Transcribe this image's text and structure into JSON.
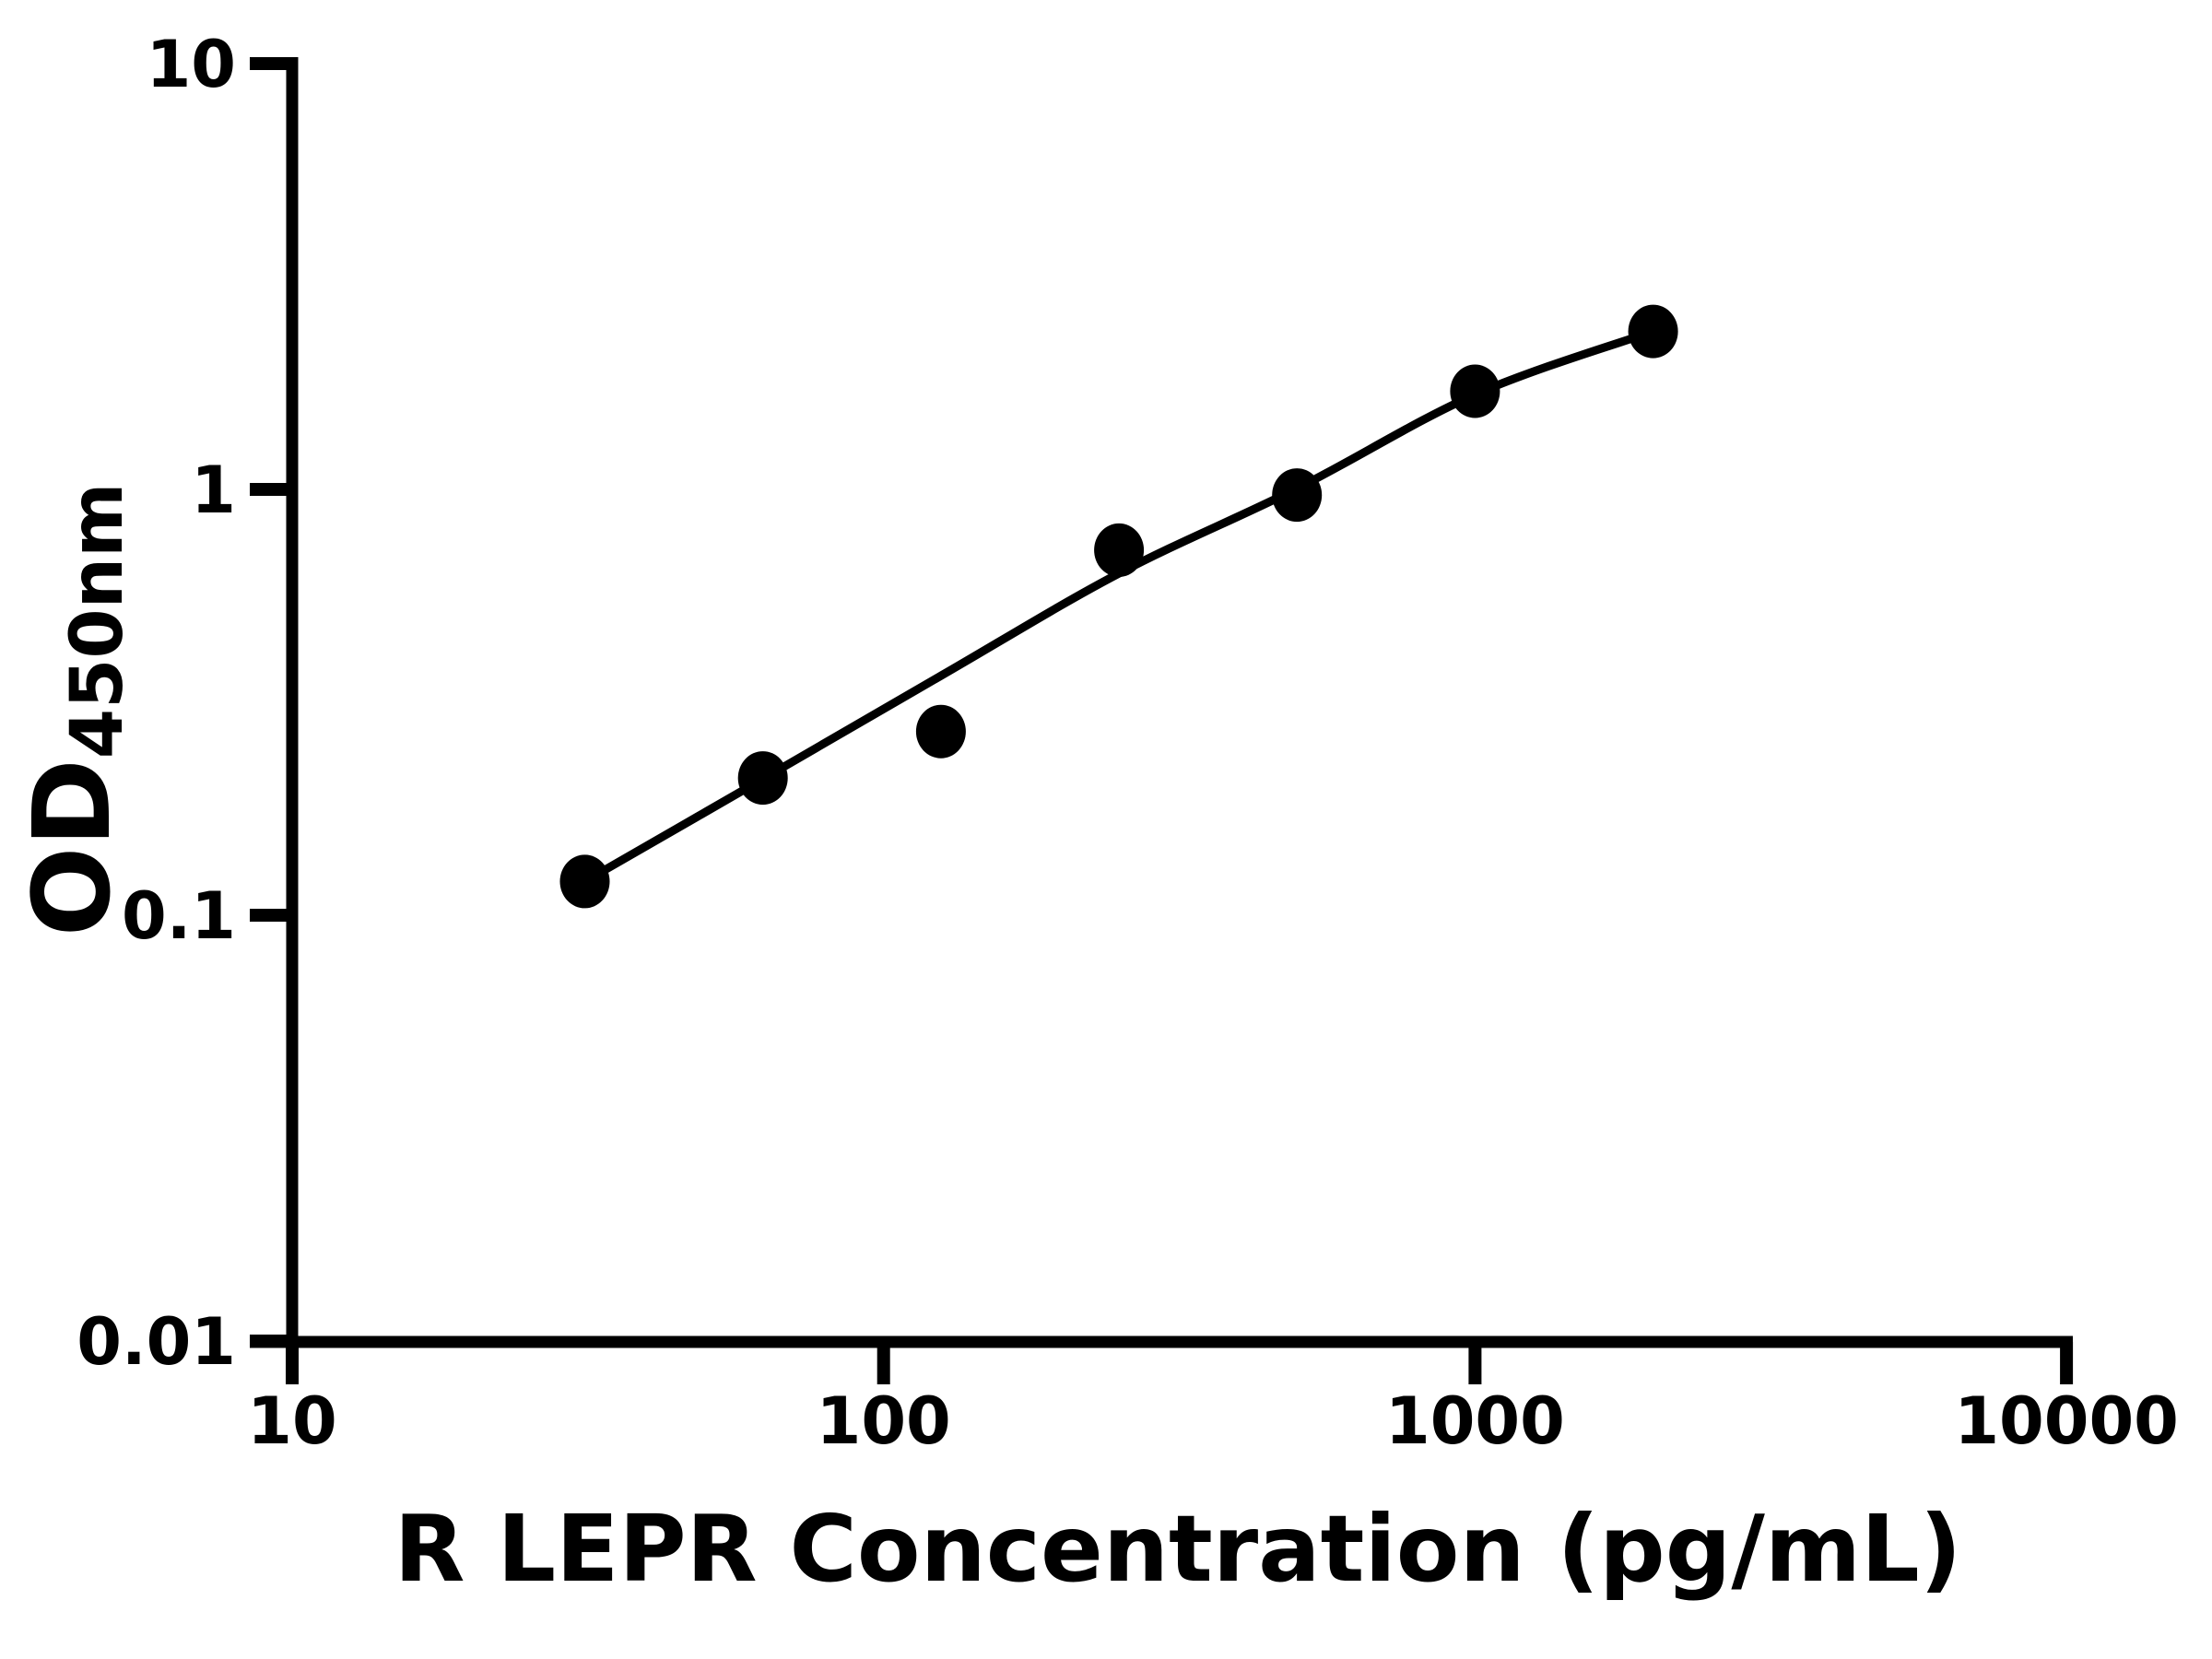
{
  "chart_data": {
    "type": "scatter",
    "x": [
      31.25,
      62.5,
      125,
      250,
      500,
      1000,
      2000
    ],
    "y_od": [
      0.12,
      0.21,
      0.27,
      0.72,
      0.97,
      1.7,
      2.35
    ],
    "fit_od": [
      0.12,
      0.209,
      0.365,
      0.635,
      1.005,
      1.67,
      2.35
    ],
    "xlabel": "R LEPR Concentration (pg/mL)",
    "ylabel_main": "OD",
    "ylabel_sub": "450nm",
    "x_ticks": [
      10,
      100,
      1000,
      10000
    ],
    "x_tick_labels": [
      "10",
      "100",
      "1000",
      "10000"
    ],
    "y_ticks": [
      0.01,
      0.1,
      1,
      10
    ],
    "y_tick_labels": [
      "0.01",
      "0.1",
      "1",
      "10"
    ],
    "xlim": [
      10,
      10000
    ],
    "ylim": [
      0.01,
      10
    ],
    "x_scale": "log",
    "y_scale": "log",
    "grid": false,
    "legend": null,
    "marker_shape": "filled-circle",
    "marker_color": "#000000",
    "line_color": "#000000",
    "axis_color": "#000000",
    "background": "#ffffff"
  }
}
